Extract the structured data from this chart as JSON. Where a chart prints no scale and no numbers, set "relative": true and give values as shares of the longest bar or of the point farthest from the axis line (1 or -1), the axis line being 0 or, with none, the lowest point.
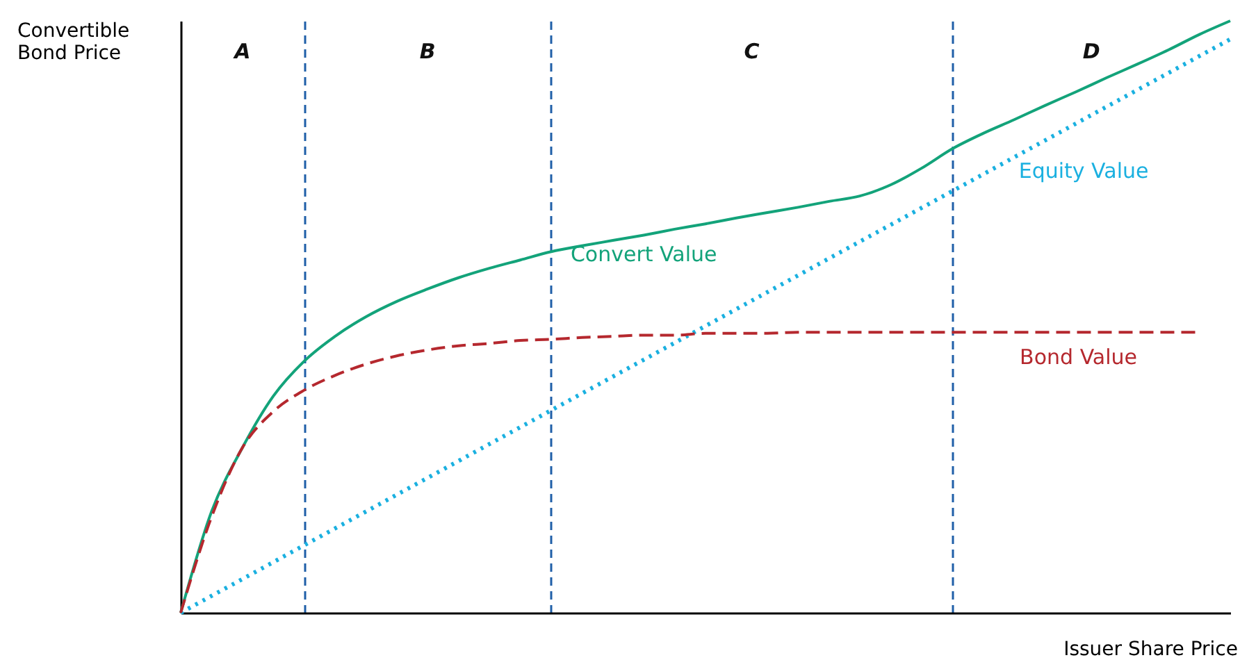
{
  "chart_data": {
    "type": "line",
    "relative": true,
    "xlabel": "Issuer Share Price",
    "ylabel": "Convertible Bond Price",
    "annotations": [
      "A",
      "B",
      "C",
      "D"
    ],
    "grid": "x",
    "categories": [
      null,
      null,
      null,
      null,
      null,
      null,
      null,
      null,
      null,
      null,
      null,
      null,
      null,
      null,
      null,
      null,
      null,
      null,
      null,
      null,
      null,
      null,
      null,
      null,
      null,
      null,
      null,
      null,
      null,
      null,
      null,
      null,
      null,
      null,
      null
    ],
    "series": [
      {
        "name": "Convert Value",
        "color": "#13a37a",
        "line_style": "solid",
        "values": [
          0,
          0.171,
          0.279,
          0.366,
          0.425,
          0.467,
          0.5,
          0.526,
          0.547,
          0.566,
          0.582,
          0.596,
          0.61,
          0.62,
          0.629,
          0.638,
          0.648,
          0.657,
          0.667,
          0.676,
          0.685,
          0.695,
          0.704,
          0.723,
          0.751,
          0.784,
          0.81,
          0.833,
          0.857,
          0.88,
          0.904,
          0.927,
          0.951,
          0.977,
          1
        ]
      },
      {
        "name": "Equity Value",
        "color": "#1ab0e0",
        "line_style": "dotted",
        "values": [
          0,
          0.0285,
          0.057,
          0.0855,
          0.114,
          0.1425,
          0.171,
          0.1995,
          0.228,
          0.2565,
          0.285,
          0.3135,
          0.342,
          0.3705,
          0.399,
          0.4275,
          0.456,
          0.4845,
          0.513,
          0.5415,
          0.57,
          0.5985,
          0.627,
          0.6555,
          0.684,
          0.7125,
          0.741,
          0.7695,
          0.798,
          0.8265,
          0.855,
          0.8835,
          0.912,
          0.9405,
          0.969
        ]
      },
      {
        "name": "Bond Value",
        "color": "#b5282e",
        "line_style": "dashed",
        "values": [
          0,
          0.162,
          0.279,
          0.34,
          0.376,
          0.401,
          0.42,
          0.434,
          0.444,
          0.451,
          0.455,
          0.46,
          0.462,
          0.465,
          0.467,
          0.469,
          0.469,
          0.472,
          0.472,
          0.472,
          0.474,
          0.474,
          0.474,
          0.474,
          0.474,
          0.474,
          0.474,
          0.474,
          0.474,
          0.474,
          0.474,
          0.474,
          0.474,
          0.474,
          null
        ]
      }
    ]
  }
}
